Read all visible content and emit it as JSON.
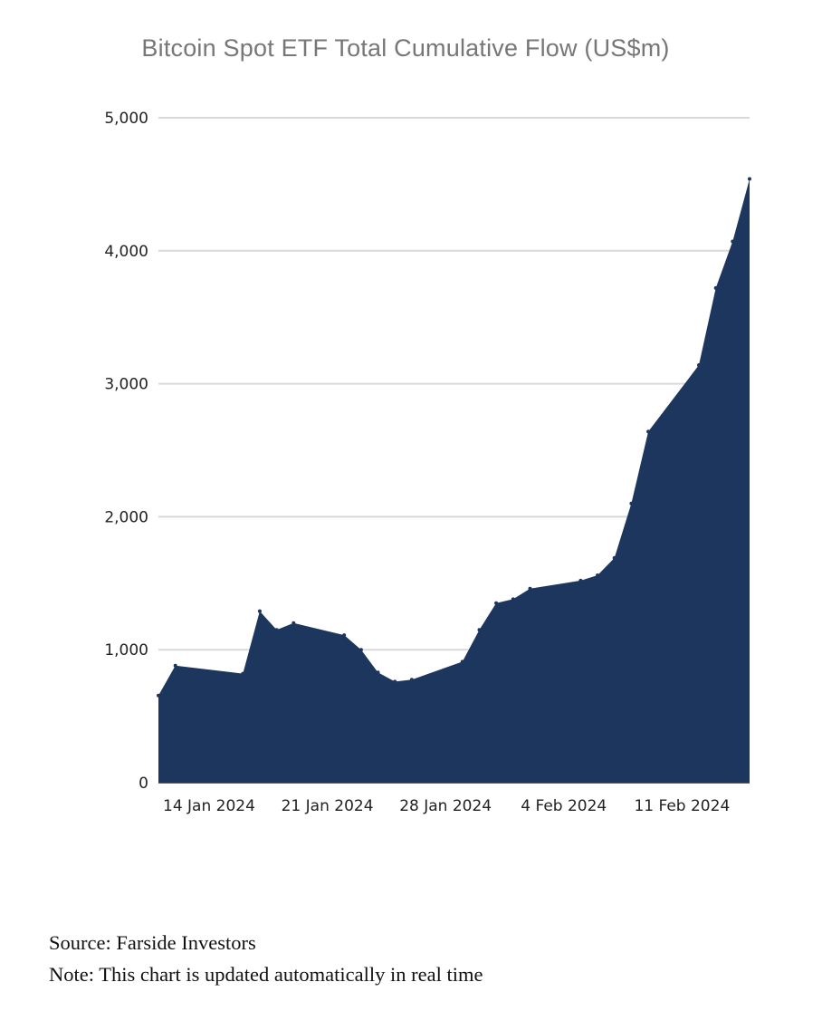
{
  "chart_data": {
    "type": "area",
    "title": "Bitcoin Spot ETF Total Cumulative Flow (US$m)",
    "xlabel": "",
    "ylabel": "",
    "ylim": [
      0,
      5000
    ],
    "y_ticks": [
      "0",
      "1,000",
      "2,000",
      "3,000",
      "4,000",
      "5,000"
    ],
    "y_tick_values": [
      0,
      1000,
      2000,
      3000,
      4000,
      5000
    ],
    "x_ticks": [
      "14 Jan 2024",
      "21 Jan 2024",
      "28 Jan 2024",
      "4 Feb 2024",
      "11 Feb 2024"
    ],
    "x_tick_dates": [
      "2024-01-14",
      "2024-01-21",
      "2024-01-28",
      "2024-02-04",
      "2024-02-11"
    ],
    "xlim": [
      "2024-01-11",
      "2024-02-15"
    ],
    "grid": true,
    "fill_color": "#1c365e",
    "grid_color": "#d9d9d9",
    "x": [
      "2024-01-11",
      "2024-01-12",
      "2024-01-16",
      "2024-01-17",
      "2024-01-18",
      "2024-01-19",
      "2024-01-22",
      "2024-01-23",
      "2024-01-24",
      "2024-01-25",
      "2024-01-26",
      "2024-01-29",
      "2024-01-30",
      "2024-01-31",
      "2024-02-01",
      "2024-02-02",
      "2024-02-05",
      "2024-02-06",
      "2024-02-07",
      "2024-02-08",
      "2024-02-09",
      "2024-02-12",
      "2024-02-13",
      "2024-02-14",
      "2024-02-15"
    ],
    "values": [
      655,
      880,
      820,
      1290,
      1150,
      1200,
      1110,
      1000,
      830,
      760,
      775,
      910,
      1150,
      1350,
      1380,
      1460,
      1520,
      1560,
      1690,
      2100,
      2640,
      3140,
      3720,
      4070,
      4540
    ]
  },
  "source": "Source: Farside Investors",
  "note": "Note: This chart is updated automatically in real time"
}
